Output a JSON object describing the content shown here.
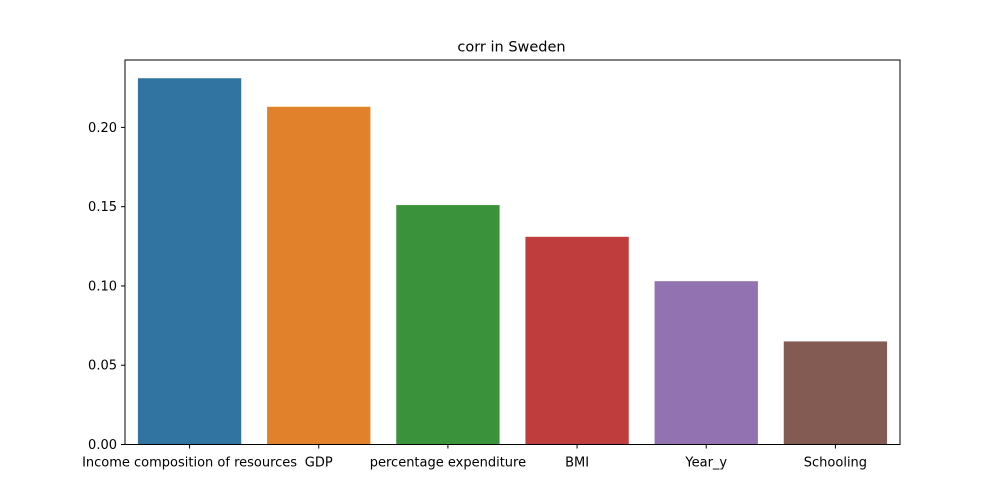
{
  "chart_data": {
    "type": "bar",
    "title": "corr in Sweden",
    "xlabel": "",
    "ylabel": "",
    "categories": [
      "Income composition of resources",
      "GDP",
      "percentage expenditure",
      " BMI ",
      "Year_y",
      "Schooling"
    ],
    "values": [
      0.231,
      0.213,
      0.151,
      0.131,
      0.103,
      0.065
    ],
    "colors": [
      "#3274a1",
      "#e1812c",
      "#3a923a",
      "#c03d3e",
      "#9372b2",
      "#845b53"
    ],
    "ylim": [
      0,
      0.2425
    ],
    "yticks": [
      0.0,
      0.05,
      0.1,
      0.15,
      0.2
    ],
    "ytick_labels": [
      "0.00",
      "0.05",
      "0.10",
      "0.15",
      "0.20"
    ],
    "grid": false,
    "legend": "none"
  }
}
